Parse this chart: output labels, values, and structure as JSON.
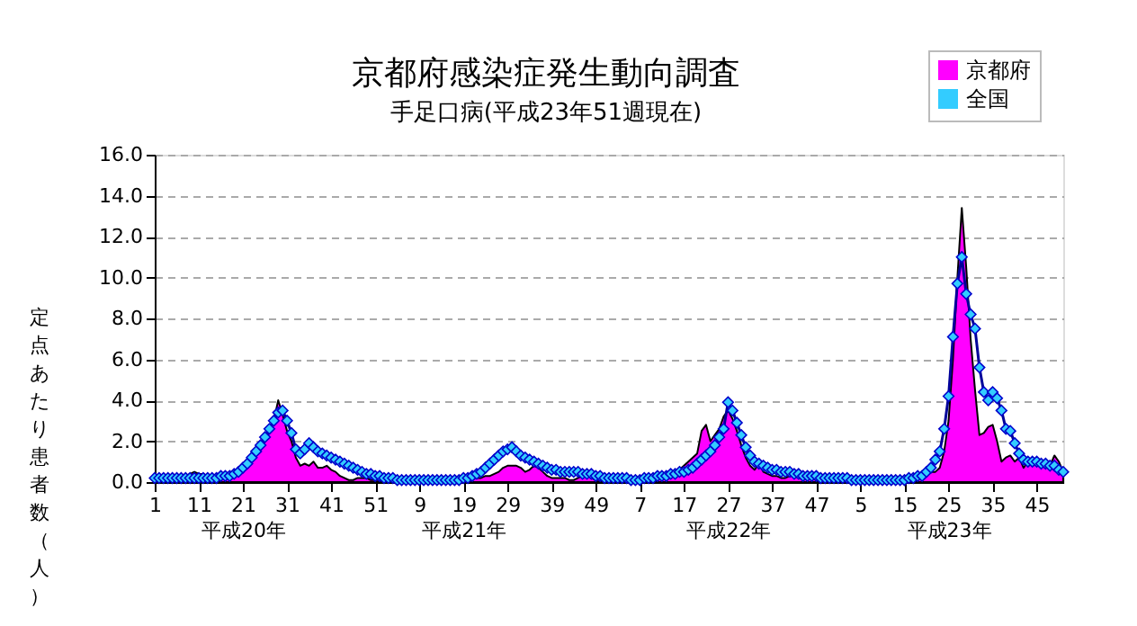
{
  "chart_data": {
    "type": "area",
    "title": "京都府感染症発生動向調査",
    "subtitle": "手足口病(平成23年51週現在)",
    "ylabel": "定点あたり患者数（人）",
    "categories": [
      "1",
      null,
      null,
      null,
      null,
      null,
      null,
      null,
      null,
      null,
      "11",
      null,
      null,
      null,
      null,
      null,
      null,
      null,
      null,
      null,
      "21\n平成20年",
      null,
      null,
      null,
      null,
      null,
      null,
      null,
      null,
      null,
      "31",
      null,
      null,
      null,
      null,
      null,
      null,
      null,
      null,
      null,
      "41",
      null,
      null,
      null,
      null,
      null,
      null,
      null,
      null,
      null,
      "51",
      null,
      null,
      null,
      null,
      null,
      null,
      null,
      null,
      null,
      "9",
      null,
      null,
      null,
      null,
      null,
      null,
      null,
      null,
      null,
      "19\n平成21年",
      null,
      null,
      null,
      null,
      null,
      null,
      null,
      null,
      null,
      "29",
      null,
      null,
      null,
      null,
      null,
      null,
      null,
      null,
      null,
      "39",
      null,
      null,
      null,
      null,
      null,
      null,
      null,
      null,
      null,
      "49",
      null,
      null,
      null,
      null,
      null,
      null,
      null,
      null,
      null,
      "7",
      null,
      null,
      null,
      null,
      null,
      null,
      null,
      null,
      null,
      "17",
      null,
      null,
      null,
      null,
      null,
      null,
      null,
      null,
      null,
      "27\n平成22年",
      null,
      null,
      null,
      null,
      null,
      null,
      null,
      null,
      null,
      "37",
      null,
      null,
      null,
      null,
      null,
      null,
      null,
      null,
      null,
      "47",
      null,
      null,
      null,
      null,
      null,
      null,
      null,
      null,
      null,
      "5",
      null,
      null,
      null,
      null,
      null,
      null,
      null,
      null,
      null,
      "15",
      null,
      null,
      null,
      null,
      null,
      null,
      null,
      null,
      null,
      "25\n平成23年",
      null,
      null,
      null,
      null,
      null,
      null,
      null,
      null,
      null,
      "35",
      null,
      null,
      null,
      null,
      null,
      null,
      null,
      null,
      null,
      "45",
      null,
      null,
      null,
      null,
      null,
      null
    ],
    "ylim": [
      0,
      16
    ],
    "yticks": [
      {
        "value": 0,
        "label": "0.0"
      },
      {
        "value": 2,
        "label": "2.0"
      },
      {
        "value": 4,
        "label": "4.0"
      },
      {
        "value": 6,
        "label": "6.0"
      },
      {
        "value": 8,
        "label": "8.0"
      },
      {
        "value": 10,
        "label": "10.0"
      },
      {
        "value": 12,
        "label": "12.0"
      },
      {
        "value": 14,
        "label": "14.0"
      },
      {
        "value": 16,
        "label": "16.0"
      }
    ],
    "grid": "y",
    "legend": "top right",
    "series": [
      {
        "name": "京都府",
        "color": "#ff00ff",
        "values": [
          0.1,
          0.1,
          0.1,
          0.1,
          0.1,
          0.1,
          0.2,
          0.3,
          0.4,
          0.5,
          0.4,
          0.4,
          0.3,
          0.3,
          0.2,
          0.2,
          0.3,
          0.4,
          0.5,
          0.6,
          0.7,
          0.9,
          1.1,
          1.3,
          1.6,
          2.0,
          2.5,
          3.0,
          4.0,
          3.3,
          2.5,
          2.0,
          1.2,
          0.8,
          0.9,
          0.8,
          1.0,
          0.7,
          0.7,
          0.8,
          0.6,
          0.5,
          0.3,
          0.2,
          0.1,
          0.1,
          0.2,
          0.2,
          0.2,
          0.1,
          0.1,
          0.1,
          0.1,
          0.1,
          0.1,
          0.1,
          0.1,
          0.1,
          0.1,
          0.0,
          0.0,
          0.0,
          0.1,
          0.1,
          0.1,
          0.1,
          0.1,
          0.1,
          0.1,
          0.1,
          0.1,
          0.1,
          0.2,
          0.2,
          0.2,
          0.3,
          0.3,
          0.4,
          0.5,
          0.7,
          0.8,
          0.8,
          0.8,
          0.7,
          0.5,
          0.6,
          0.8,
          0.7,
          0.5,
          0.3,
          0.2,
          0.2,
          0.2,
          0.2,
          0.1,
          0.1,
          0.2,
          0.3,
          0.3,
          0.2,
          0.1,
          0.1,
          0.1,
          0.1,
          0.1,
          0.1,
          0.1,
          0.1,
          0.1,
          0.1,
          0.1,
          0.1,
          0.1,
          0.1,
          0.1,
          0.2,
          0.3,
          0.4,
          0.5,
          0.6,
          0.8,
          1.0,
          1.2,
          1.4,
          2.5,
          2.8,
          2.0,
          2.3,
          2.6,
          3.2,
          3.5,
          3.1,
          2.5,
          1.8,
          1.2,
          0.8,
          0.6,
          0.9,
          0.5,
          0.4,
          0.3,
          0.3,
          0.2,
          0.2,
          0.3,
          0.3,
          0.2,
          0.3,
          0.3,
          0.2,
          0.2,
          0.2,
          0.2,
          0.1,
          0.1,
          0.1,
          0.1,
          0.1,
          0.1,
          0.1,
          0.1,
          0.1,
          0.1,
          0.1,
          0.1,
          0.1,
          0.1,
          0.1,
          0.1,
          0.1,
          0.1,
          0.2,
          0.2,
          0.2,
          0.3,
          0.4,
          0.5,
          0.5,
          0.7,
          1.5,
          3.0,
          6.0,
          10.0,
          13.4,
          10.5,
          7.0,
          4.5,
          2.3,
          2.4,
          2.7,
          2.8,
          2.0,
          1.0,
          1.2,
          1.3,
          1.0,
          1.2,
          0.7,
          1.0,
          0.8,
          0.9,
          0.8,
          0.7,
          0.8,
          1.3,
          1.0,
          0.5
        ]
      },
      {
        "name": "全国",
        "type": "line",
        "color": "#33ccff",
        "marker": "diamond",
        "values": [
          0.2,
          0.2,
          0.2,
          0.2,
          0.2,
          0.2,
          0.2,
          0.2,
          0.2,
          0.2,
          0.2,
          0.2,
          0.2,
          0.2,
          0.2,
          0.3,
          0.3,
          0.3,
          0.4,
          0.5,
          0.7,
          0.9,
          1.2,
          1.5,
          1.8,
          2.2,
          2.6,
          3.0,
          3.4,
          3.5,
          3.0,
          2.4,
          1.6,
          1.4,
          1.6,
          1.9,
          1.7,
          1.5,
          1.4,
          1.3,
          1.2,
          1.1,
          1.0,
          0.9,
          0.8,
          0.7,
          0.6,
          0.5,
          0.4,
          0.4,
          0.3,
          0.3,
          0.2,
          0.2,
          0.2,
          0.1,
          0.1,
          0.1,
          0.1,
          0.1,
          0.1,
          0.1,
          0.1,
          0.1,
          0.1,
          0.1,
          0.1,
          0.1,
          0.1,
          0.1,
          0.2,
          0.2,
          0.3,
          0.4,
          0.5,
          0.7,
          0.9,
          1.1,
          1.3,
          1.5,
          1.6,
          1.7,
          1.5,
          1.3,
          1.2,
          1.1,
          1.0,
          0.9,
          0.8,
          0.7,
          0.6,
          0.6,
          0.5,
          0.5,
          0.5,
          0.5,
          0.5,
          0.4,
          0.4,
          0.4,
          0.3,
          0.3,
          0.2,
          0.2,
          0.2,
          0.2,
          0.2,
          0.2,
          0.1,
          0.1,
          0.1,
          0.2,
          0.2,
          0.2,
          0.3,
          0.3,
          0.3,
          0.4,
          0.4,
          0.5,
          0.5,
          0.6,
          0.7,
          0.9,
          1.1,
          1.3,
          1.5,
          1.8,
          2.2,
          2.6,
          3.9,
          3.5,
          2.9,
          2.3,
          1.7,
          1.3,
          1.0,
          0.9,
          0.8,
          0.7,
          0.6,
          0.6,
          0.5,
          0.5,
          0.5,
          0.4,
          0.4,
          0.3,
          0.3,
          0.3,
          0.3,
          0.2,
          0.2,
          0.2,
          0.2,
          0.2,
          0.2,
          0.2,
          0.1,
          0.1,
          0.1,
          0.1,
          0.1,
          0.1,
          0.1,
          0.1,
          0.1,
          0.1,
          0.1,
          0.1,
          0.1,
          0.2,
          0.2,
          0.3,
          0.3,
          0.5,
          0.7,
          1.1,
          1.5,
          2.6,
          4.2,
          7.1,
          9.7,
          11.0,
          9.2,
          8.2,
          7.5,
          5.6,
          4.4,
          4.0,
          4.4,
          4.1,
          3.5,
          2.6,
          2.5,
          1.9,
          1.4,
          1.1,
          1.0,
          1.0,
          1.0,
          0.9,
          0.9,
          0.8,
          0.8,
          0.6,
          0.5
        ]
      }
    ]
  }
}
